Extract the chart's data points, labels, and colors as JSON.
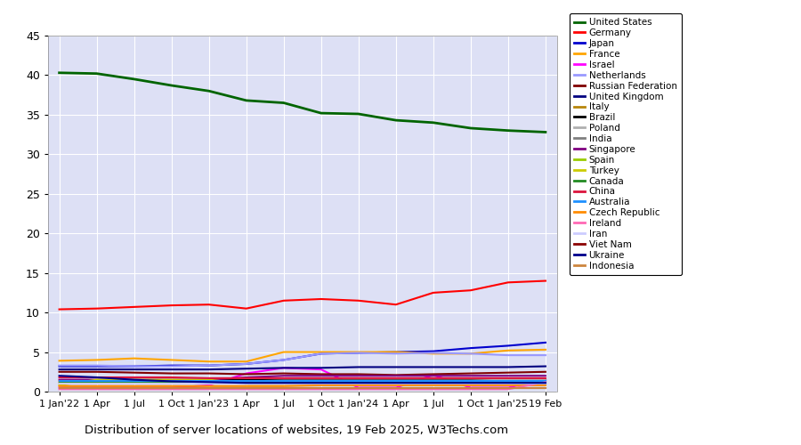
{
  "title": "Distribution of server locations of websites, 19 Feb 2025, W3Techs.com",
  "plot_bg_color": "#dde0f5",
  "fig_bg_color": "#ffffff",
  "ylim": [
    0,
    45
  ],
  "yticks": [
    0,
    5,
    10,
    15,
    20,
    25,
    30,
    35,
    40,
    45
  ],
  "x_labels": [
    "1 Jan'22",
    "1 Apr",
    "1 Jul",
    "1 Oct",
    "1 Jan'23",
    "1 Apr",
    "1 Jul",
    "1 Oct",
    "1 Jan'24",
    "1 Apr",
    "1 Jul",
    "1 Oct",
    "1 Jan'25",
    "19 Feb"
  ],
  "x_positions": [
    0,
    1,
    2,
    3,
    4,
    5,
    6,
    7,
    8,
    9,
    10,
    11,
    12,
    13
  ],
  "series": [
    {
      "name": "United States",
      "color": "#006400",
      "linewidth": 2.0,
      "values": [
        40.3,
        40.2,
        39.5,
        38.7,
        38.0,
        36.8,
        36.5,
        35.2,
        35.1,
        34.3,
        34.0,
        33.3,
        33.0,
        32.8
      ]
    },
    {
      "name": "Germany",
      "color": "#ff0000",
      "linewidth": 1.5,
      "values": [
        10.4,
        10.5,
        10.7,
        10.9,
        11.0,
        10.5,
        11.5,
        11.7,
        11.5,
        11.0,
        12.5,
        12.8,
        13.8,
        14.0
      ]
    },
    {
      "name": "Japan",
      "color": "#0000cd",
      "linewidth": 1.5,
      "values": [
        3.2,
        3.2,
        3.2,
        3.3,
        3.3,
        3.5,
        4.0,
        4.8,
        4.9,
        5.0,
        5.1,
        5.5,
        5.8,
        6.2
      ]
    },
    {
      "name": "France",
      "color": "#ffa500",
      "linewidth": 1.5,
      "values": [
        3.9,
        4.0,
        4.2,
        4.0,
        3.8,
        3.8,
        5.0,
        5.0,
        5.0,
        5.0,
        4.8,
        4.8,
        5.2,
        5.3
      ]
    },
    {
      "name": "Israel",
      "color": "#ff00ff",
      "linewidth": 1.5,
      "values": [
        0.5,
        0.5,
        0.5,
        0.5,
        0.8,
        2.3,
        3.0,
        2.8,
        0.5,
        0.5,
        2.1,
        0.5,
        0.5,
        1.6
      ]
    },
    {
      "name": "Netherlands",
      "color": "#9999ff",
      "linewidth": 1.5,
      "values": [
        3.3,
        3.3,
        3.2,
        3.2,
        3.3,
        3.5,
        4.0,
        4.8,
        4.9,
        4.8,
        4.9,
        4.8,
        4.6,
        4.6
      ]
    },
    {
      "name": "Russian Federation",
      "color": "#800000",
      "linewidth": 1.5,
      "values": [
        2.5,
        2.5,
        2.4,
        2.3,
        2.3,
        2.2,
        2.3,
        2.2,
        2.2,
        2.1,
        2.2,
        2.3,
        2.4,
        2.5
      ]
    },
    {
      "name": "United Kingdom",
      "color": "#000080",
      "linewidth": 1.5,
      "values": [
        2.8,
        2.8,
        2.8,
        2.8,
        2.8,
        2.9,
        3.0,
        3.0,
        3.1,
        3.1,
        3.1,
        3.1,
        3.1,
        3.2
      ]
    },
    {
      "name": "Italy",
      "color": "#b8860b",
      "linewidth": 1.5,
      "values": [
        1.2,
        1.2,
        1.2,
        1.2,
        1.3,
        1.3,
        1.4,
        1.4,
        1.4,
        1.4,
        1.5,
        1.5,
        1.5,
        1.5
      ]
    },
    {
      "name": "Brazil",
      "color": "#000000",
      "linewidth": 1.5,
      "values": [
        1.5,
        1.5,
        1.5,
        1.5,
        1.5,
        1.5,
        1.5,
        1.5,
        1.5,
        1.5,
        1.5,
        1.5,
        1.5,
        1.5
      ]
    },
    {
      "name": "Poland",
      "color": "#b0b0b0",
      "linewidth": 1.5,
      "values": [
        1.2,
        1.2,
        1.2,
        1.3,
        1.3,
        1.3,
        1.4,
        1.4,
        1.4,
        1.4,
        1.4,
        1.4,
        1.5,
        1.5
      ]
    },
    {
      "name": "India",
      "color": "#808080",
      "linewidth": 1.5,
      "values": [
        1.0,
        1.0,
        1.0,
        1.0,
        1.0,
        1.0,
        1.0,
        1.0,
        1.0,
        1.0,
        1.0,
        1.0,
        1.0,
        1.0
      ]
    },
    {
      "name": "Singapore",
      "color": "#800080",
      "linewidth": 1.5,
      "values": [
        1.5,
        1.5,
        1.5,
        1.5,
        1.5,
        1.8,
        2.0,
        2.0,
        2.0,
        2.0,
        2.0,
        2.0,
        2.0,
        2.0
      ]
    },
    {
      "name": "Spain",
      "color": "#99cc00",
      "linewidth": 1.5,
      "values": [
        1.0,
        1.0,
        1.0,
        1.0,
        1.0,
        1.0,
        1.0,
        1.0,
        1.0,
        1.0,
        1.0,
        1.0,
        1.0,
        1.0
      ]
    },
    {
      "name": "Turkey",
      "color": "#cccc00",
      "linewidth": 1.5,
      "values": [
        0.8,
        1.5,
        1.5,
        1.5,
        1.5,
        1.0,
        1.0,
        1.0,
        1.0,
        1.0,
        1.0,
        1.0,
        1.0,
        1.0
      ]
    },
    {
      "name": "Canada",
      "color": "#228b22",
      "linewidth": 1.5,
      "values": [
        1.2,
        1.2,
        1.2,
        1.2,
        1.2,
        1.2,
        1.2,
        1.2,
        1.2,
        1.2,
        1.2,
        1.2,
        1.2,
        1.2
      ]
    },
    {
      "name": "China",
      "color": "#dc143c",
      "linewidth": 1.5,
      "values": [
        1.8,
        1.8,
        1.8,
        1.8,
        1.7,
        1.7,
        1.7,
        1.7,
        1.7,
        1.7,
        1.7,
        1.7,
        1.7,
        1.7
      ]
    },
    {
      "name": "Australia",
      "color": "#1e90ff",
      "linewidth": 1.5,
      "values": [
        1.3,
        1.3,
        1.3,
        1.3,
        1.3,
        1.3,
        1.3,
        1.3,
        1.3,
        1.3,
        1.3,
        1.3,
        1.3,
        1.3
      ]
    },
    {
      "name": "Czech Republic",
      "color": "#ff8c00",
      "linewidth": 1.5,
      "values": [
        0.7,
        0.7,
        0.7,
        0.7,
        0.7,
        0.7,
        0.7,
        0.8,
        0.8,
        0.8,
        0.8,
        0.8,
        0.8,
        0.8
      ]
    },
    {
      "name": "Ireland",
      "color": "#ff69b4",
      "linewidth": 1.5,
      "values": [
        0.3,
        0.3,
        0.3,
        0.3,
        0.3,
        0.3,
        0.3,
        0.3,
        0.3,
        0.3,
        0.3,
        0.3,
        0.3,
        1.2
      ]
    },
    {
      "name": "Iran",
      "color": "#ccccff",
      "linewidth": 1.5,
      "values": [
        1.0,
        1.0,
        1.0,
        1.0,
        1.0,
        1.0,
        1.0,
        1.0,
        1.0,
        1.0,
        1.0,
        1.0,
        1.0,
        1.0
      ]
    },
    {
      "name": "Viet Nam",
      "color": "#8b0000",
      "linewidth": 1.5,
      "values": [
        0.5,
        0.5,
        0.5,
        0.5,
        0.5,
        0.5,
        0.5,
        0.5,
        0.5,
        0.5,
        0.5,
        0.5,
        0.5,
        0.5
      ]
    },
    {
      "name": "Ukraine",
      "color": "#00008b",
      "linewidth": 1.5,
      "values": [
        2.0,
        1.8,
        1.5,
        1.3,
        1.2,
        1.1,
        1.1,
        1.1,
        1.1,
        1.1,
        1.1,
        1.1,
        1.1,
        1.1
      ]
    },
    {
      "name": "Indonesia",
      "color": "#cd853f",
      "linewidth": 1.5,
      "values": [
        0.4,
        0.4,
        0.4,
        0.4,
        0.4,
        0.4,
        0.4,
        0.4,
        0.4,
        0.4,
        0.4,
        0.4,
        0.4,
        0.4
      ]
    }
  ]
}
